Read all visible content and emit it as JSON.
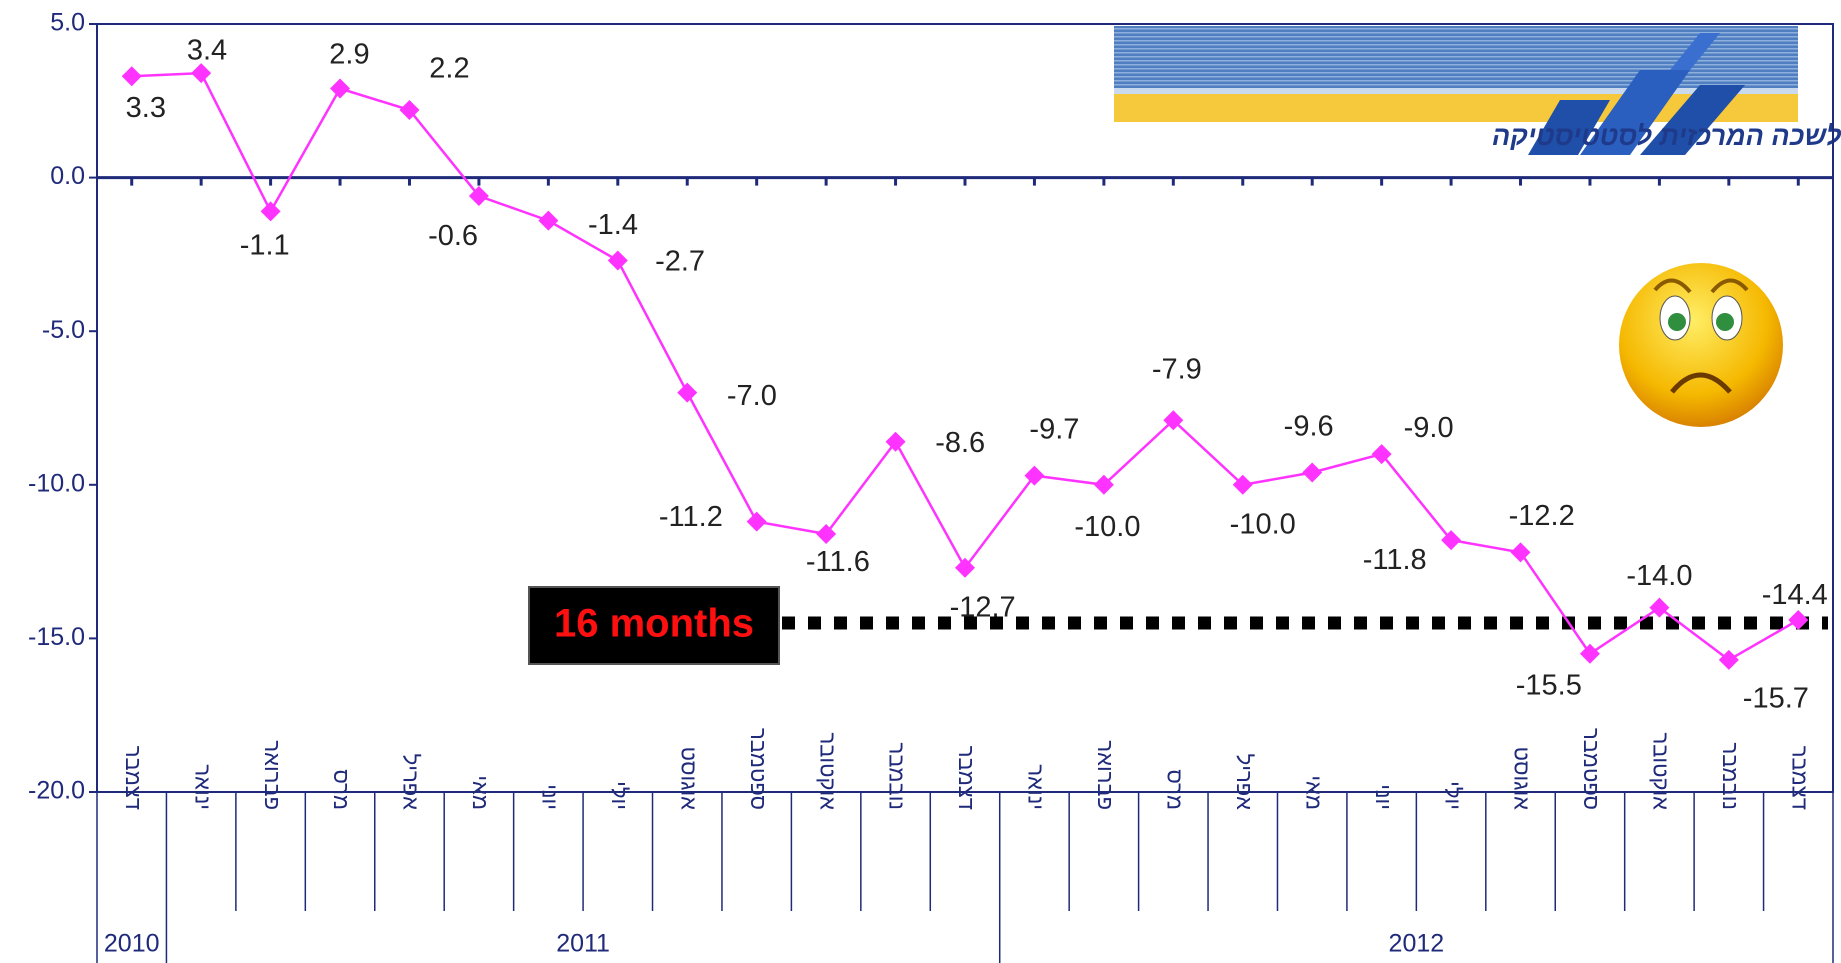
{
  "chart_data": {
    "type": "line",
    "categories": [
      "דצמבר",
      "ינואר",
      "פברואר",
      "מרס",
      "אפריל",
      "מאי",
      "יוני",
      "יולי",
      "אוגוסט",
      "ספטמבר",
      "אוקטובר",
      "נובמבר",
      "דצמבר",
      "ינואר",
      "פברואר",
      "מרס",
      "אפריל",
      "מאי",
      "יוני",
      "יולי",
      "אוגוסט",
      "ספטמבר",
      "אוקטובר",
      "נובמבר",
      "דצמבר"
    ],
    "years": [
      "2010",
      "2011",
      "2012"
    ],
    "values": [
      3.3,
      3.4,
      -1.1,
      2.9,
      2.2,
      -0.6,
      -1.4,
      -2.7,
      -7.0,
      -11.2,
      -11.6,
      -8.6,
      -12.7,
      -9.7,
      -10.0,
      -7.9,
      -10.0,
      -9.6,
      -9.0,
      -11.8,
      -12.2,
      -15.5,
      -14.0,
      -15.7,
      -14.4
    ],
    "value_labels": [
      "3.3",
      "3.4",
      "-1.1",
      "2.9",
      "2.2",
      "-0.6",
      "-1.4",
      "-2.7",
      "-7.0",
      "-11.2",
      "-11.6",
      "-8.6",
      "-12.7",
      "-9.7",
      "-10.0",
      "-7.9",
      "-10.0",
      "-9.6",
      "-9.0",
      "-11.8",
      "-12.2",
      "-15.5",
      "-14.0",
      "-15.7",
      "-14.4"
    ],
    "color": "#ff33ff",
    "ylim": [
      -20,
      5
    ],
    "yticks": [
      {
        "value": 5,
        "label": "5.0"
      },
      {
        "value": 0,
        "label": "0.0"
      },
      {
        "value": -5,
        "label": "-5.0"
      },
      {
        "value": -10,
        "label": "-10.0"
      },
      {
        "value": -15,
        "label": "-15.0"
      },
      {
        "value": -20,
        "label": "-20.0"
      }
    ],
    "annotation": "16 months",
    "logo_text": "הלשכה המרכזית לסטטיסטיקה"
  }
}
